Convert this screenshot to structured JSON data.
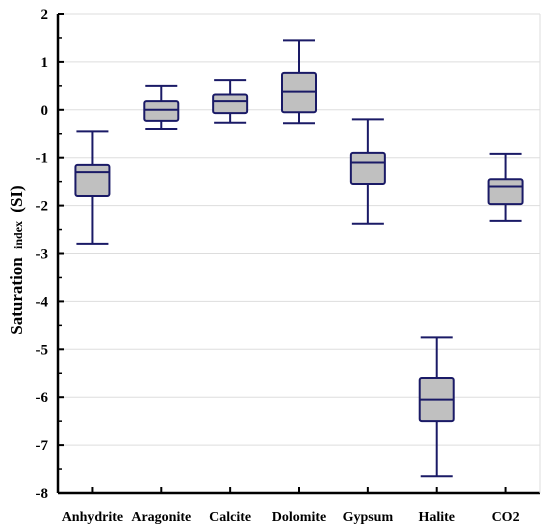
{
  "chart_data": {
    "type": "box",
    "title": "",
    "xlabel": "",
    "ylabel": {
      "main": "Saturation",
      "sub": "index",
      "tail": "(SI)"
    },
    "ylim": [
      -8,
      2
    ],
    "yticks": [
      "2",
      "1",
      "0",
      "-1",
      "-2",
      "-3",
      "-4",
      "-5",
      "-6",
      "-7",
      "-8"
    ],
    "grid": true,
    "categories": [
      "Anhydrite",
      "Aragonite",
      "Calcite",
      "Dolomite",
      "Gypsum",
      "Halite",
      "CO2"
    ],
    "boxes": [
      {
        "min": -2.8,
        "q1": -1.8,
        "median": -1.3,
        "q3": -1.15,
        "max": -0.45
      },
      {
        "min": -0.4,
        "q1": -0.23,
        "median": 0.0,
        "q3": 0.18,
        "max": 0.5
      },
      {
        "min": -0.27,
        "q1": -0.07,
        "median": 0.18,
        "q3": 0.32,
        "max": 0.62
      },
      {
        "min": -0.28,
        "q1": -0.05,
        "median": 0.38,
        "q3": 0.77,
        "max": 1.45
      },
      {
        "min": -2.38,
        "q1": -1.55,
        "median": -1.1,
        "q3": -0.9,
        "max": -0.2
      },
      {
        "min": -7.65,
        "q1": -6.5,
        "median": -6.05,
        "q3": -5.6,
        "max": -4.75
      },
      {
        "min": -2.32,
        "q1": -1.97,
        "median": -1.6,
        "q3": -1.45,
        "max": -0.92
      }
    ],
    "colors": {
      "box_fill": "#c0c0c0",
      "box_stroke": "#1a1a66",
      "grid": "#dddddd",
      "axis": "#000000"
    }
  }
}
